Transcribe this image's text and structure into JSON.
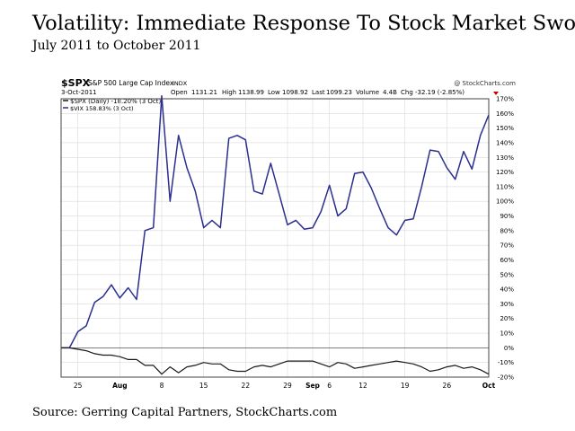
{
  "title": "Volatility: Immediate Response To Stock Market Swoon",
  "subtitle": "July 2011 to October 2011",
  "source": "Source: Gerring Capital Partners, StockCharts.com",
  "chart_header": {
    "symbol": "$SPX",
    "name": "S&P 500 Large Cap Index",
    "exchange": "INDX",
    "brand": "@ StockCharts.com",
    "date": "3-Oct-2011",
    "open_label": "Open",
    "open": "1131.21",
    "high_label": "High",
    "high": "1138.99",
    "low_label": "Low",
    "low": "1098.92",
    "last_label": "Last",
    "last": "1099.23",
    "volume_label": "Volume",
    "volume": "4.4B",
    "chg_label": "Chg",
    "chg": "-32.19 (-2.85%)",
    "legend_spx": "$SPX (Daily) -18.20% (3 Oct)",
    "legend_vix": "$VIX 158.83% (3 Oct)"
  },
  "colors": {
    "vix_line": "#2b2f8f",
    "spx_line": "#1a1a1a",
    "zero_line": "#555555",
    "grid": "#d9d9d9",
    "frame": "#444444",
    "arrow_down": "#cc0000"
  },
  "chart_data": {
    "type": "line",
    "title": "",
    "xlabel": "",
    "ylabel": "",
    "x_tick_labels": [
      "25",
      "Aug",
      "8",
      "15",
      "22",
      "29",
      "Sep",
      "6",
      "12",
      "19",
      "26",
      "Oct"
    ],
    "y_tick_labels": [
      "170%",
      "160%",
      "150%",
      "140%",
      "130%",
      "120%",
      "110%",
      "100%",
      "90%",
      "80%",
      "70%",
      "60%",
      "50%",
      "40%",
      "30%",
      "20%",
      "10%",
      "0%",
      "-10%",
      "-20%"
    ],
    "ylim": [
      -20,
      170
    ],
    "grid": true,
    "x": [
      "Jul 21",
      "Jul 22",
      "Jul 25",
      "Jul 26",
      "Jul 27",
      "Jul 28",
      "Jul 29",
      "Aug 1",
      "Aug 2",
      "Aug 3",
      "Aug 4",
      "Aug 5",
      "Aug 8",
      "Aug 9",
      "Aug 10",
      "Aug 11",
      "Aug 12",
      "Aug 15",
      "Aug 16",
      "Aug 17",
      "Aug 18",
      "Aug 19",
      "Aug 22",
      "Aug 23",
      "Aug 24",
      "Aug 25",
      "Aug 26",
      "Aug 29",
      "Aug 30",
      "Aug 31",
      "Sep 1",
      "Sep 2",
      "Sep 6",
      "Sep 7",
      "Sep 8",
      "Sep 9",
      "Sep 12",
      "Sep 13",
      "Sep 14",
      "Sep 15",
      "Sep 16",
      "Sep 19",
      "Sep 20",
      "Sep 21",
      "Sep 22",
      "Sep 23",
      "Sep 26",
      "Sep 27",
      "Sep 28",
      "Sep 29",
      "Sep 30",
      "Oct 3"
    ],
    "series": [
      {
        "name": "$VIX 158.83% (3 Oct)",
        "values": [
          0,
          0,
          11,
          15,
          31,
          35,
          43,
          34,
          41,
          33,
          80,
          82,
          172,
          100,
          145,
          123,
          107,
          82,
          87,
          82,
          143,
          145,
          142,
          107,
          105,
          126,
          105,
          84,
          87,
          81,
          82,
          93,
          111,
          90,
          95,
          119,
          120,
          109,
          95,
          82,
          77,
          87,
          88,
          110,
          135,
          134,
          123,
          115,
          134,
          122,
          145,
          159
        ]
      },
      {
        "name": "$SPX (Daily) -18.20% (3 Oct)",
        "values": [
          0,
          0,
          -1,
          -2,
          -4,
          -5,
          -5,
          -6,
          -8,
          -8,
          -12,
          -12,
          -18,
          -13,
          -17,
          -13,
          -12,
          -10,
          -11,
          -11,
          -15,
          -16,
          -16,
          -13,
          -12,
          -13,
          -11,
          -9,
          -9,
          -9,
          -9,
          -11,
          -13,
          -10,
          -11,
          -14,
          -13,
          -12,
          -11,
          -10,
          -9,
          -10,
          -11,
          -13,
          -16,
          -15,
          -13,
          -12,
          -14,
          -13,
          -15,
          -18
        ]
      }
    ]
  }
}
